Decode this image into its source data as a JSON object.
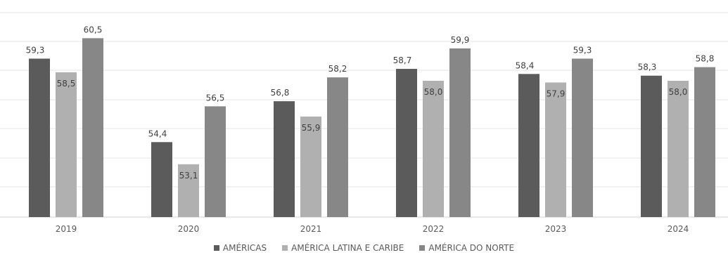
{
  "chart_data": {
    "type": "bar",
    "title": "",
    "xlabel": "",
    "ylabel": "",
    "categories": [
      "2019",
      "2020",
      "2021",
      "2022",
      "2023",
      "2024"
    ],
    "series": [
      {
        "name": "AMÉRICAS",
        "color": "#5b5b5b",
        "values": [
          59.3,
          54.4,
          56.8,
          58.7,
          58.4,
          58.3
        ],
        "labels": [
          "59,3",
          "54,4",
          "56,8",
          "58,7",
          "58,4",
          "58,3"
        ],
        "label_position": "above"
      },
      {
        "name": "AMÉRICA LATINA E CARIBE",
        "color": "#b0b0b0",
        "values": [
          58.5,
          53.1,
          55.9,
          58.0,
          57.9,
          58.0
        ],
        "labels": [
          "58,5",
          "53,1",
          "55,9",
          "58,0",
          "57,9",
          "58,0"
        ],
        "label_position": "inside-top"
      },
      {
        "name": "AMÉRICA DO NORTE",
        "color": "#878787",
        "values": [
          60.5,
          56.5,
          58.2,
          59.9,
          59.3,
          58.8
        ],
        "labels": [
          "60,5",
          "56,5",
          "58,2",
          "59,9",
          "59,3",
          "58,8"
        ],
        "label_position": "above"
      }
    ],
    "ylim": [
      50,
      62
    ],
    "grid": true,
    "legend_position": "bottom"
  }
}
